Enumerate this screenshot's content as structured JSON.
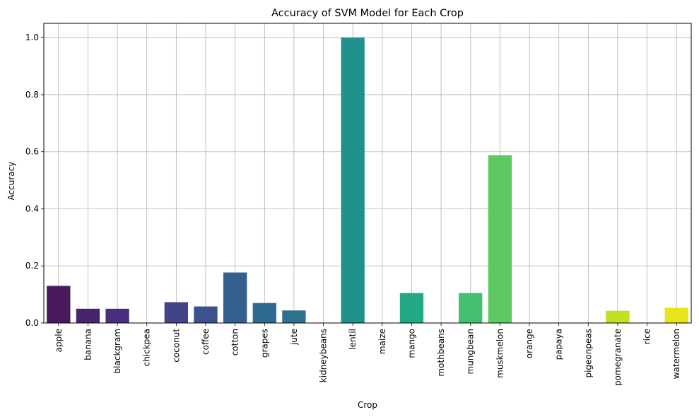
{
  "chart_data": {
    "type": "bar",
    "title": "Accuracy of SVM Model for Each Crop",
    "xlabel": "Crop",
    "ylabel": "Accuracy",
    "ylim": [
      0,
      1.05
    ],
    "yticks": [
      0.0,
      0.2,
      0.4,
      0.6,
      0.8,
      1.0
    ],
    "ytick_labels": [
      "0.0",
      "0.2",
      "0.4",
      "0.6",
      "0.8",
      "1.0"
    ],
    "grid": true,
    "categories": [
      "apple",
      "banana",
      "blackgram",
      "chickpea",
      "coconut",
      "coffee",
      "cotton",
      "grapes",
      "jute",
      "kidneybeans",
      "lentil",
      "maize",
      "mango",
      "mothbeans",
      "mungbean",
      "muskmelon",
      "orange",
      "papaya",
      "pigeonpeas",
      "pomegranate",
      "rice",
      "watermelon"
    ],
    "values": [
      0.13,
      0.05,
      0.05,
      0.0,
      0.073,
      0.058,
      0.177,
      0.07,
      0.044,
      0.0,
      1.0,
      0.0,
      0.105,
      0.0,
      0.105,
      0.588,
      0.0,
      0.0,
      0.0,
      0.043,
      0.0,
      0.053
    ],
    "colors": [
      "#481a5c",
      "#48246a",
      "#472f7d",
      "#443a83",
      "#414487",
      "#3b528b",
      "#355f8d",
      "#306a8e",
      "#2c728e",
      "#277f8e",
      "#21918c",
      "#1f9a8a",
      "#22a884",
      "#2db27d",
      "#44bf70",
      "#5ec962",
      "#7ad151",
      "#95d840",
      "#b5de2b",
      "#c2df23",
      "#dde318",
      "#e8e419"
    ]
  }
}
